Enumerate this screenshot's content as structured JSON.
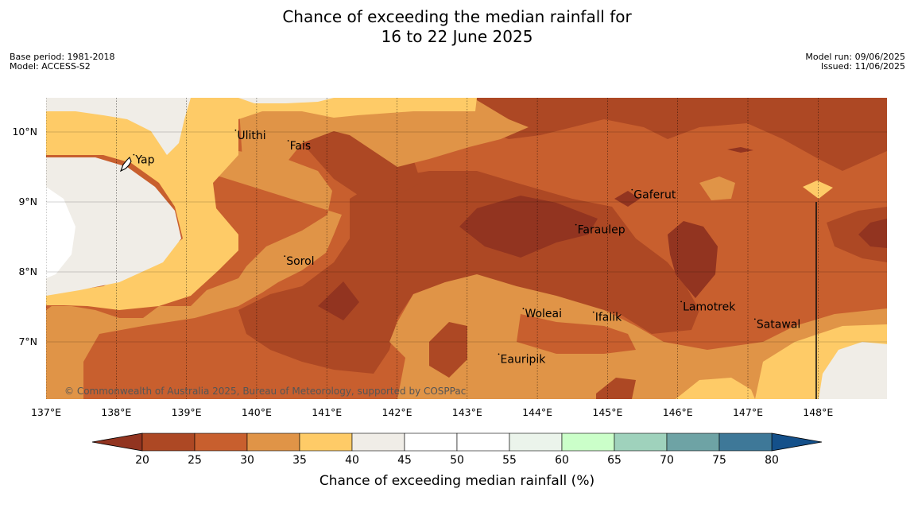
{
  "title_line1": "Chance of exceeding the median rainfall for",
  "title_line2": "16 to 22 June 2025",
  "meta_left": [
    "Base period: 1981-2018",
    "Model: ACCESS-S2"
  ],
  "meta_right": [
    "Model run: 09/06/2025",
    "Issued: 11/06/2025"
  ],
  "copyright": "© Commonwealth of Australia 2025, Bureau of Meteorology, supported by COSPPac",
  "map": {
    "lon_range": [
      137,
      149
    ],
    "lat_range": [
      6.2,
      10.5
    ],
    "lon_ticks": [
      {
        "value": 137,
        "label": "137°E"
      },
      {
        "value": 138,
        "label": "138°E"
      },
      {
        "value": 139,
        "label": "139°E"
      },
      {
        "value": 140,
        "label": "140°E"
      },
      {
        "value": 141,
        "label": "141°E"
      },
      {
        "value": 142,
        "label": "142°E"
      },
      {
        "value": 143,
        "label": "143°E"
      },
      {
        "value": 144,
        "label": "144°E"
      },
      {
        "value": 145,
        "label": "145°E"
      },
      {
        "value": 146,
        "label": "146°E"
      },
      {
        "value": 147,
        "label": "147°E"
      },
      {
        "value": 148,
        "label": "148°E"
      }
    ],
    "lat_ticks": [
      {
        "value": 10,
        "label": "10°N"
      },
      {
        "value": 9,
        "label": "9°N"
      },
      {
        "value": 8,
        "label": "8°N"
      },
      {
        "value": 7,
        "label": "7°N"
      }
    ],
    "places": [
      {
        "name": "Yap",
        "lon": 138.25,
        "lat": 9.55
      },
      {
        "name": "Ulithi",
        "lon": 139.7,
        "lat": 9.9
      },
      {
        "name": "Fais",
        "lon": 140.45,
        "lat": 9.75
      },
      {
        "name": "Gaferut",
        "lon": 145.35,
        "lat": 9.05
      },
      {
        "name": "Faraulep",
        "lon": 144.55,
        "lat": 8.55
      },
      {
        "name": "Sorol",
        "lon": 140.4,
        "lat": 8.1
      },
      {
        "name": "Lamotrek",
        "lon": 146.05,
        "lat": 7.45
      },
      {
        "name": "Woleai",
        "lon": 143.8,
        "lat": 7.35
      },
      {
        "name": "Ifalik",
        "lon": 144.8,
        "lat": 7.3
      },
      {
        "name": "Satawal",
        "lon": 147.1,
        "lat": 7.2
      },
      {
        "name": "Eauripik",
        "lon": 143.45,
        "lat": 6.7
      }
    ]
  },
  "legend": {
    "label": "Chance of exceeding median rainfall (%)",
    "ticks": [
      "20",
      "25",
      "30",
      "35",
      "40",
      "45",
      "50",
      "55",
      "60",
      "65",
      "70",
      "75",
      "80"
    ],
    "under_color": "#923420",
    "over_color": "#14508a",
    "colors": [
      "#ad4824",
      "#c85f2e",
      "#e09447",
      "#fecb67",
      "#f0ede7",
      "#ffffff",
      "#ffffff",
      "#ebf4eb",
      "#cbffc9",
      "#9fd2bc",
      "#6ea3a5",
      "#3e7898"
    ]
  },
  "colors": {
    "c20": "#923420",
    "c25": "#ad4824",
    "c30": "#c85f2e",
    "c35": "#e09447",
    "c40": "#fecb67",
    "c45": "#f0ede7"
  }
}
